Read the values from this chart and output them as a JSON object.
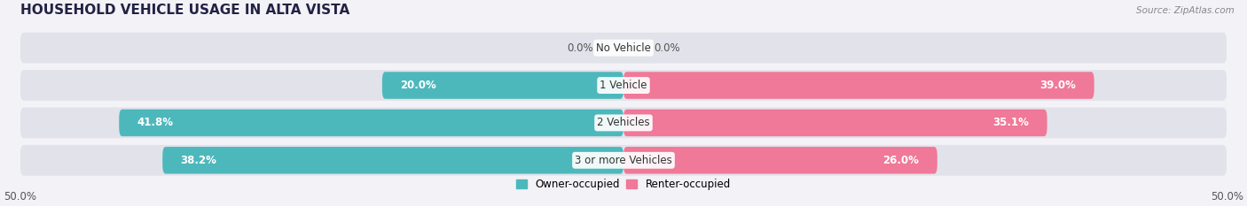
{
  "title": "HOUSEHOLD VEHICLE USAGE IN ALTA VISTA",
  "source": "Source: ZipAtlas.com",
  "categories": [
    "3 or more Vehicles",
    "2 Vehicles",
    "1 Vehicle",
    "No Vehicle"
  ],
  "owner_values": [
    38.2,
    41.8,
    20.0,
    0.0
  ],
  "renter_values": [
    26.0,
    35.1,
    39.0,
    0.0
  ],
  "owner_color": "#4db8bc",
  "renter_color": "#f07898",
  "background_color": "#f2f2f7",
  "bar_bg_color": "#e2e2ea",
  "xlim": 50.0,
  "bar_height": 0.72,
  "title_fontsize": 11,
  "label_fontsize": 8.5,
  "tick_fontsize": 8.5,
  "legend_fontsize": 8.5
}
